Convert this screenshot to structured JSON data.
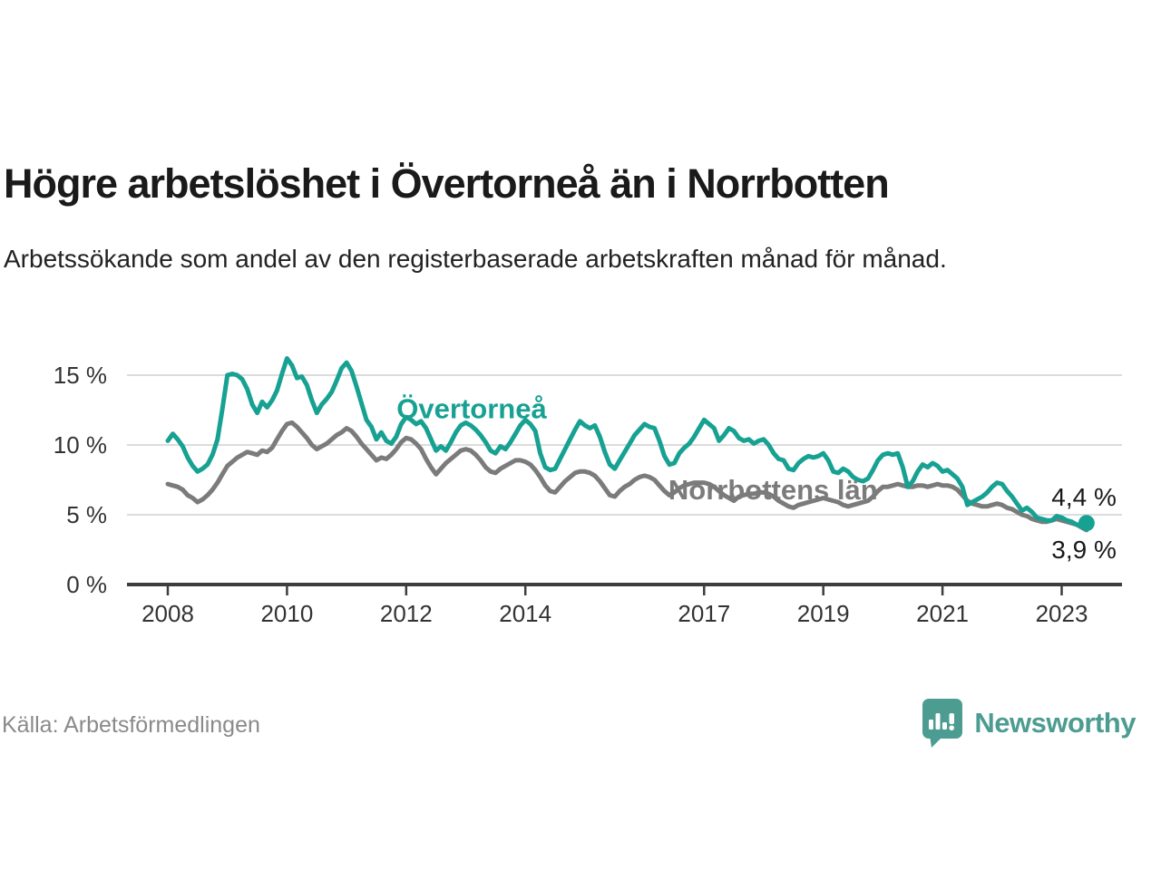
{
  "header": {
    "title": "Högre arbetslöshet i Övertorneå än i Norrbotten",
    "subtitle": "Arbetssökande som andel av den registerbaserade arbetskraften månad för månad."
  },
  "footer": {
    "source": "Källa: Arbetsförmedlingen",
    "brand": "Newsworthy"
  },
  "colors": {
    "series_overtornea": "#17a192",
    "series_norrbotten": "#7b7b7b",
    "grid": "#dcdcdc",
    "axis": "#3d3d3d",
    "tick_label": "#333333",
    "annotation": "#1a1a1a",
    "brand_teal": "#4d9c92",
    "source_gray": "#8a8a8a"
  },
  "chart_data": {
    "type": "line",
    "title": "Högre arbetslöshet i Övertorneå än i Norrbotten",
    "xlabel": "",
    "ylabel": "Arbetssökande som andel av den registerbaserade arbetskraften",
    "x_start_year": 2008,
    "x_interval": "monthly",
    "x_ticks": [
      "2008",
      "2010",
      "2012",
      "2014",
      "2017",
      "2019",
      "2021",
      "2023"
    ],
    "y_ticks": [
      "0 %",
      "5 %",
      "10 %",
      "15 %"
    ],
    "y_tick_values": [
      0,
      5,
      10,
      15
    ],
    "ylim": [
      0,
      17
    ],
    "grid": true,
    "legend_position": "inline-labels",
    "series": [
      {
        "name": "Övertorneå",
        "end_label": "4,4 %",
        "end_value": 4.4,
        "end_dot": true,
        "label_anchor": {
          "x_year": 2011.84,
          "y_pct": 11.9
        },
        "values": [
          10.3,
          10.8,
          10.4,
          9.9,
          9.1,
          8.5,
          8.1,
          8.3,
          8.6,
          9.3,
          10.4,
          12.6,
          15.0,
          15.1,
          15.0,
          14.7,
          14.0,
          12.9,
          12.3,
          13.1,
          12.7,
          13.2,
          13.9,
          15.1,
          16.2,
          15.7,
          14.8,
          14.9,
          14.3,
          13.2,
          12.3,
          12.9,
          13.3,
          13.8,
          14.6,
          15.5,
          15.9,
          15.3,
          14.2,
          13.0,
          11.8,
          11.3,
          10.4,
          10.9,
          10.3,
          10.1,
          10.6,
          11.5,
          12.0,
          11.8,
          11.5,
          11.7,
          11.2,
          10.4,
          9.6,
          9.9,
          9.6,
          10.2,
          10.9,
          11.4,
          11.6,
          11.4,
          11.1,
          10.7,
          10.2,
          9.6,
          9.4,
          9.9,
          9.7,
          10.2,
          10.8,
          11.4,
          11.8,
          11.5,
          11.0,
          9.4,
          8.4,
          8.2,
          8.3,
          9.0,
          9.7,
          10.4,
          11.1,
          11.7,
          11.4,
          11.2,
          11.4,
          10.6,
          9.5,
          8.6,
          8.3,
          8.9,
          9.5,
          10.1,
          10.7,
          11.1,
          11.5,
          11.3,
          11.2,
          10.3,
          9.2,
          8.6,
          8.7,
          9.4,
          9.8,
          10.1,
          10.6,
          11.2,
          11.8,
          11.5,
          11.2,
          10.3,
          10.7,
          11.2,
          11.0,
          10.5,
          10.3,
          10.4,
          10.1,
          10.3,
          10.4,
          10.0,
          9.4,
          9.0,
          8.9,
          8.3,
          8.2,
          8.7,
          9.0,
          9.2,
          9.1,
          9.2,
          9.4,
          8.9,
          8.1,
          8.0,
          8.3,
          8.1,
          7.7,
          7.5,
          7.4,
          7.6,
          8.2,
          8.9,
          9.3,
          9.4,
          9.3,
          9.4,
          8.4,
          7.0,
          7.4,
          8.1,
          8.6,
          8.4,
          8.7,
          8.5,
          8.1,
          8.2,
          7.9,
          7.6,
          7.0,
          5.7,
          5.9,
          6.1,
          6.3,
          6.6,
          7.0,
          7.3,
          7.2,
          6.7,
          6.3,
          5.8,
          5.3,
          5.5,
          5.2,
          4.8,
          4.7,
          4.6,
          4.6,
          4.9,
          4.8,
          4.6,
          4.5,
          4.3,
          4.2,
          4.4
        ]
      },
      {
        "name": "Norrbottens län",
        "end_label": "3,9 %",
        "end_value": 3.9,
        "end_dot": false,
        "label_anchor": {
          "x_year": 2016.4,
          "y_pct": 6.1
        },
        "values": [
          7.2,
          7.1,
          7.0,
          6.8,
          6.4,
          6.2,
          5.9,
          6.1,
          6.4,
          6.8,
          7.3,
          7.9,
          8.5,
          8.8,
          9.1,
          9.3,
          9.5,
          9.4,
          9.3,
          9.6,
          9.5,
          9.8,
          10.4,
          11.0,
          11.5,
          11.6,
          11.3,
          10.9,
          10.5,
          10.0,
          9.7,
          9.9,
          10.1,
          10.4,
          10.7,
          10.9,
          11.2,
          11.0,
          10.6,
          10.1,
          9.7,
          9.3,
          8.9,
          9.1,
          9.0,
          9.3,
          9.7,
          10.2,
          10.5,
          10.4,
          10.1,
          9.7,
          9.0,
          8.4,
          7.9,
          8.3,
          8.7,
          9.0,
          9.3,
          9.6,
          9.7,
          9.6,
          9.3,
          8.9,
          8.4,
          8.1,
          8.0,
          8.3,
          8.5,
          8.7,
          8.9,
          8.9,
          8.8,
          8.6,
          8.2,
          7.7,
          7.1,
          6.7,
          6.6,
          7.0,
          7.4,
          7.7,
          8.0,
          8.1,
          8.1,
          8.0,
          7.8,
          7.4,
          6.9,
          6.4,
          6.3,
          6.7,
          7.0,
          7.2,
          7.5,
          7.7,
          7.8,
          7.7,
          7.5,
          7.1,
          6.7,
          6.4,
          6.6,
          6.9,
          7.1,
          7.2,
          7.3,
          7.3,
          7.3,
          7.2,
          7.0,
          6.7,
          6.4,
          6.2,
          6.0,
          6.3,
          6.4,
          6.5,
          6.5,
          6.6,
          6.6,
          6.5,
          6.3,
          6.0,
          5.8,
          5.6,
          5.5,
          5.7,
          5.8,
          5.9,
          6.0,
          6.1,
          6.2,
          6.1,
          6.0,
          5.9,
          5.7,
          5.6,
          5.7,
          5.8,
          5.9,
          6.0,
          6.3,
          6.7,
          7.0,
          7.0,
          7.1,
          7.2,
          7.1,
          7.0,
          7.0,
          7.1,
          7.1,
          7.0,
          7.1,
          7.2,
          7.1,
          7.1,
          7.0,
          6.8,
          6.4,
          6.0,
          5.8,
          5.7,
          5.6,
          5.6,
          5.7,
          5.8,
          5.7,
          5.5,
          5.4,
          5.2,
          5.0,
          4.9,
          4.7,
          4.6,
          4.5,
          4.5,
          4.6,
          4.7,
          4.6,
          4.5,
          4.4,
          4.3,
          4.1,
          3.9
        ]
      }
    ]
  }
}
